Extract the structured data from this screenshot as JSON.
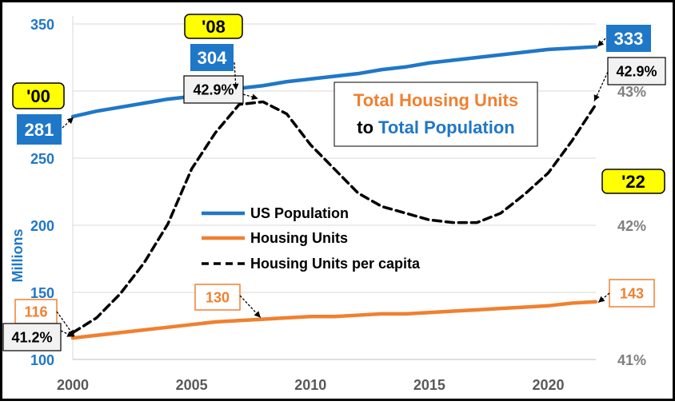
{
  "chart_data": {
    "type": "line",
    "title_line1": "Total Housing Units",
    "title_line2_prefix": "to",
    "title_line2_highlight": "Total Population",
    "ylabel": "Millions",
    "x": [
      2000,
      2001,
      2002,
      2003,
      2004,
      2005,
      2006,
      2007,
      2008,
      2009,
      2010,
      2011,
      2012,
      2013,
      2014,
      2015,
      2016,
      2017,
      2018,
      2019,
      2020,
      2021,
      2022
    ],
    "x_ticks": [
      2000,
      2005,
      2010,
      2015,
      2020
    ],
    "x_tick_labels": [
      "2000",
      "2005",
      "2010",
      "2015",
      "2020"
    ],
    "xlim": [
      2000,
      2022
    ],
    "y_left_lim": [
      100,
      350
    ],
    "y_left_ticks": [
      100,
      150,
      200,
      250,
      300,
      350
    ],
    "y_left_tick_labels": [
      "100",
      "150",
      "200",
      "250",
      "300",
      "350"
    ],
    "y_right_lim": [
      41.0,
      43.5
    ],
    "y_right_ticks": [
      41,
      42,
      43
    ],
    "y_right_tick_labels": [
      "41%",
      "42%",
      "43%"
    ],
    "grid": true,
    "series": [
      {
        "name": "US Population",
        "axis": "left",
        "color": "#1F77C8",
        "style": "solid",
        "values": [
          281,
          285,
          288,
          291,
          294,
          296,
          299,
          302,
          304,
          307,
          309,
          311,
          313,
          316,
          318,
          321,
          323,
          325,
          327,
          329,
          331,
          332,
          333
        ]
      },
      {
        "name": "Housing Units",
        "axis": "left",
        "color": "#F08030",
        "style": "solid",
        "values": [
          116,
          118,
          120,
          122,
          124,
          126,
          128,
          129,
          130,
          131,
          132,
          132,
          133,
          134,
          134,
          135,
          136,
          137,
          138,
          139,
          140,
          142,
          143
        ]
      },
      {
        "name": "Housing Units per capita",
        "axis": "right",
        "color": "#000000",
        "style": "dashed",
        "values": [
          41.2,
          41.31,
          41.49,
          41.72,
          42.01,
          42.42,
          42.69,
          42.9,
          42.92,
          42.83,
          42.6,
          42.42,
          42.24,
          42.14,
          42.09,
          42.04,
          42.02,
          42.02,
          42.09,
          42.23,
          42.39,
          42.63,
          42.9
        ]
      }
    ],
    "annotations": {
      "year_labels": [
        {
          "key": "y2000",
          "text": "'00"
        },
        {
          "key": "y2008",
          "text": "'08"
        },
        {
          "key": "y2022",
          "text": "'22"
        }
      ],
      "population": [
        {
          "key": "p2000",
          "text": "281"
        },
        {
          "key": "p2008",
          "text": "304"
        },
        {
          "key": "p2022",
          "text": "333"
        }
      ],
      "housing": [
        {
          "key": "h2000",
          "text": "116"
        },
        {
          "key": "h2008",
          "text": "130"
        },
        {
          "key": "h2022",
          "text": "143"
        }
      ],
      "per_capita": [
        {
          "key": "r2000",
          "text": "41.2%"
        },
        {
          "key": "r2008",
          "text": "42.9%"
        },
        {
          "key": "r2022",
          "text": "42.9%"
        }
      ]
    }
  }
}
